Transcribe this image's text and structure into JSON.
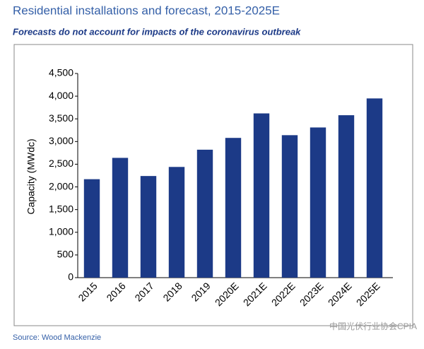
{
  "chart_data": {
    "type": "bar",
    "title": "Residential installations and forecast, 2015-2025E",
    "subtitle": "Forecasts do not account for impacts of the coronavirus outbreak",
    "y_label": "Capacity (MWdc)",
    "source": "Source: Wood Mackenzie",
    "watermark": "中国光伏行业协会CPIA",
    "categories": [
      "2015",
      "2016",
      "2017",
      "2018",
      "2019",
      "2020E",
      "2021E",
      "2022E",
      "2023E",
      "2024E",
      "2025E"
    ],
    "values": [
      2170,
      2640,
      2240,
      2440,
      2820,
      3080,
      3620,
      3140,
      3310,
      3580,
      3950
    ],
    "color": "#1c3a87",
    "ylim": [
      0,
      4500
    ],
    "yticks": [
      0,
      500,
      {
        "value": 1000,
        "label": "1,000"
      },
      {
        "value": 1500,
        "label": "1,500"
      },
      {
        "value": 2000,
        "label": "2,000"
      },
      {
        "value": 2500,
        "label": "2,500"
      },
      {
        "value": 3000,
        "label": "3,000"
      },
      {
        "value": 3500,
        "label": "3,500"
      },
      {
        "value": 4000,
        "label": "4,000"
      },
      {
        "value": 4500,
        "label": "4,500"
      }
    ],
    "grid": false
  }
}
